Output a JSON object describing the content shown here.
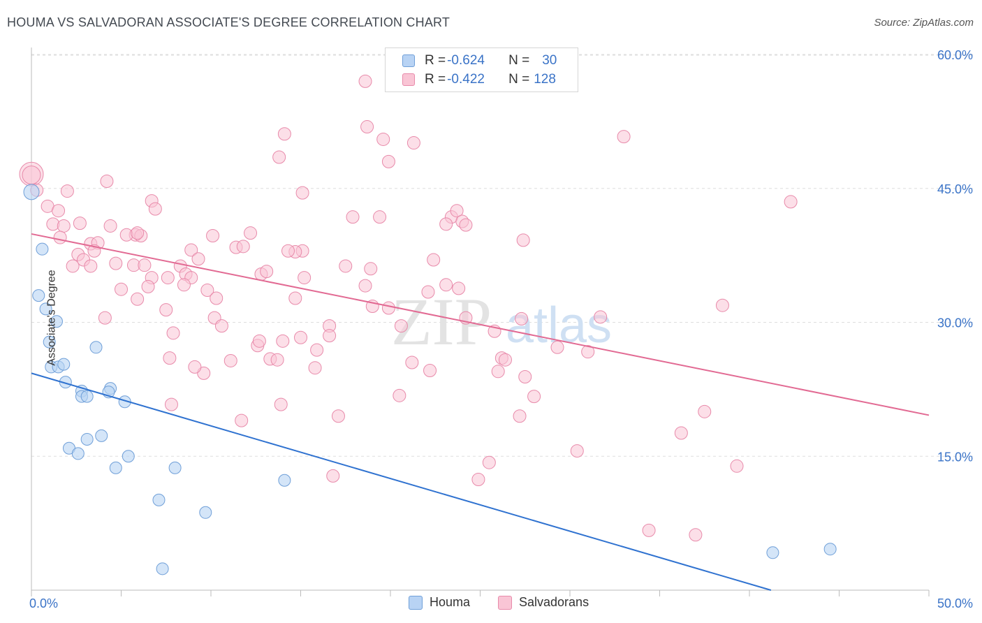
{
  "title": "HOUMA VS SALVADORAN ASSOCIATE'S DEGREE CORRELATION CHART",
  "source": "Source: ZipAtlas.com",
  "watermark": {
    "zip": "ZIP",
    "atlas": "atlas"
  },
  "legend": {
    "rows": [
      {
        "r_label": "R = ",
        "r_value": "-0.624",
        "n_label": "N = ",
        "n_value": "30"
      },
      {
        "r_label": "R = ",
        "r_value": "-0.422",
        "n_label": "N = ",
        "n_value": "128"
      }
    ]
  },
  "colors": {
    "houma_fill": "#b8d3f4",
    "houma_stroke": "#6f9fd8",
    "houma_line": "#2f72d0",
    "salv_fill": "#f9c5d5",
    "salv_stroke": "#e88aaa",
    "salv_line": "#e26a93",
    "tick_text": "#3a73c7",
    "grid": "#dddddd"
  },
  "chart_data": {
    "type": "scatter",
    "title": "HOUMA VS SALVADORAN ASSOCIATE'S DEGREE CORRELATION CHART",
    "xlabel": "",
    "ylabel": "Associate's Degree",
    "xlim": [
      0,
      50
    ],
    "ylim": [
      0,
      60
    ],
    "x_tick_labels": [
      "0.0%",
      "50.0%"
    ],
    "y_ticks": [
      15,
      30,
      45,
      60
    ],
    "y_tick_labels": [
      "15.0%",
      "30.0%",
      "45.0%",
      "60.0%"
    ],
    "grid": true,
    "legend_position": "top-center",
    "series": [
      {
        "name": "Houma",
        "R": -0.624,
        "N": 30,
        "trend": {
          "x": [
            0,
            41.2
          ],
          "y": [
            24.3,
            0
          ]
        },
        "points": [
          [
            0.0,
            44.6
          ],
          [
            0.6,
            38.2
          ],
          [
            0.4,
            33.0
          ],
          [
            0.8,
            31.5
          ],
          [
            1.4,
            30.1
          ],
          [
            1.0,
            27.8
          ],
          [
            3.6,
            27.2
          ],
          [
            1.1,
            25.0
          ],
          [
            1.5,
            25.0
          ],
          [
            1.8,
            25.3
          ],
          [
            1.9,
            23.3
          ],
          [
            2.8,
            22.3
          ],
          [
            4.4,
            22.6
          ],
          [
            2.8,
            21.7
          ],
          [
            3.1,
            21.7
          ],
          [
            4.3,
            22.2
          ],
          [
            5.2,
            21.1
          ],
          [
            3.9,
            17.3
          ],
          [
            3.1,
            16.9
          ],
          [
            2.1,
            15.9
          ],
          [
            2.6,
            15.3
          ],
          [
            5.4,
            15.0
          ],
          [
            4.7,
            13.7
          ],
          [
            8.0,
            13.7
          ],
          [
            14.1,
            12.3
          ],
          [
            7.1,
            10.1
          ],
          [
            9.7,
            8.7
          ],
          [
            7.3,
            2.4
          ],
          [
            41.3,
            4.2
          ],
          [
            44.5,
            4.6
          ]
        ]
      },
      {
        "name": "Salvadorans",
        "R": -0.422,
        "N": 128,
        "trend": {
          "x": [
            0,
            50
          ],
          "y": [
            39.9,
            19.6
          ]
        },
        "points": [
          [
            0.0,
            46.6
          ],
          [
            0.3,
            44.8
          ],
          [
            2.0,
            44.7
          ],
          [
            0.9,
            43.0
          ],
          [
            1.5,
            42.5
          ],
          [
            1.2,
            41.0
          ],
          [
            1.8,
            40.8
          ],
          [
            2.7,
            41.1
          ],
          [
            4.2,
            45.8
          ],
          [
            6.7,
            43.6
          ],
          [
            6.9,
            42.7
          ],
          [
            4.4,
            40.8
          ],
          [
            5.8,
            39.8
          ],
          [
            6.1,
            39.7
          ],
          [
            5.3,
            39.8
          ],
          [
            5.9,
            40.0
          ],
          [
            1.6,
            39.5
          ],
          [
            3.3,
            38.8
          ],
          [
            3.7,
            38.9
          ],
          [
            3.5,
            38.0
          ],
          [
            2.6,
            37.6
          ],
          [
            2.9,
            37.0
          ],
          [
            4.7,
            36.6
          ],
          [
            5.7,
            36.4
          ],
          [
            2.3,
            36.3
          ],
          [
            3.3,
            36.3
          ],
          [
            6.3,
            36.4
          ],
          [
            8.3,
            36.3
          ],
          [
            8.9,
            38.1
          ],
          [
            9.3,
            37.1
          ],
          [
            7.6,
            35.0
          ],
          [
            8.6,
            35.4
          ],
          [
            8.9,
            35.0
          ],
          [
            6.7,
            35.0
          ],
          [
            6.5,
            34.0
          ],
          [
            8.5,
            34.2
          ],
          [
            5.0,
            33.7
          ],
          [
            9.8,
            33.6
          ],
          [
            10.3,
            32.7
          ],
          [
            5.9,
            32.6
          ],
          [
            7.5,
            31.4
          ],
          [
            4.1,
            30.5
          ],
          [
            7.9,
            28.8
          ],
          [
            10.1,
            39.7
          ],
          [
            12.2,
            40.0
          ],
          [
            11.4,
            38.4
          ],
          [
            11.8,
            38.5
          ],
          [
            12.8,
            35.4
          ],
          [
            13.1,
            35.7
          ],
          [
            15.1,
            38.0
          ],
          [
            14.7,
            37.9
          ],
          [
            14.3,
            38.0
          ],
          [
            15.2,
            35.0
          ],
          [
            14.7,
            32.7
          ],
          [
            10.2,
            30.5
          ],
          [
            10.6,
            29.6
          ],
          [
            11.1,
            25.7
          ],
          [
            12.6,
            27.4
          ],
          [
            12.7,
            27.9
          ],
          [
            13.3,
            25.9
          ],
          [
            13.7,
            25.8
          ],
          [
            14.0,
            27.9
          ],
          [
            15.0,
            28.3
          ],
          [
            15.9,
            26.9
          ],
          [
            16.6,
            29.6
          ],
          [
            16.6,
            28.5
          ],
          [
            17.5,
            36.3
          ],
          [
            18.6,
            34.1
          ],
          [
            18.9,
            36.0
          ],
          [
            19.0,
            31.8
          ],
          [
            19.9,
            31.6
          ],
          [
            20.6,
            29.6
          ],
          [
            21.2,
            25.5
          ],
          [
            22.2,
            24.6
          ],
          [
            20.5,
            21.8
          ],
          [
            22.1,
            33.4
          ],
          [
            23.1,
            34.2
          ],
          [
            23.8,
            33.8
          ],
          [
            22.4,
            37.0
          ],
          [
            23.4,
            41.8
          ],
          [
            23.7,
            42.5
          ],
          [
            23.1,
            41.0
          ],
          [
            24.0,
            41.3
          ],
          [
            24.2,
            40.9
          ],
          [
            17.9,
            41.8
          ],
          [
            19.4,
            41.8
          ],
          [
            15.1,
            44.5
          ],
          [
            13.8,
            48.5
          ],
          [
            14.1,
            51.1
          ],
          [
            18.6,
            57.0
          ],
          [
            18.7,
            51.9
          ],
          [
            19.6,
            50.5
          ],
          [
            19.9,
            48.0
          ],
          [
            21.3,
            50.1
          ],
          [
            24.2,
            30.5
          ],
          [
            27.3,
            30.4
          ],
          [
            25.8,
            29.0
          ],
          [
            26.2,
            26.0
          ],
          [
            26.4,
            25.8
          ],
          [
            26.0,
            24.5
          ],
          [
            27.5,
            23.9
          ],
          [
            28.0,
            21.7
          ],
          [
            27.2,
            19.5
          ],
          [
            25.5,
            14.3
          ],
          [
            24.9,
            12.4
          ],
          [
            16.8,
            12.8
          ],
          [
            17.1,
            19.5
          ],
          [
            13.9,
            20.8
          ],
          [
            7.8,
            20.8
          ],
          [
            9.6,
            24.3
          ],
          [
            9.1,
            25.0
          ],
          [
            7.7,
            26.0
          ],
          [
            11.7,
            19.0
          ],
          [
            15.8,
            24.9
          ],
          [
            27.4,
            39.2
          ],
          [
            31.7,
            30.6
          ],
          [
            29.3,
            27.2
          ],
          [
            31.0,
            26.7
          ],
          [
            30.4,
            15.6
          ],
          [
            33.0,
            50.8
          ],
          [
            38.5,
            31.9
          ],
          [
            42.3,
            43.5
          ],
          [
            37.5,
            20.0
          ],
          [
            36.2,
            17.6
          ],
          [
            39.3,
            13.9
          ],
          [
            34.4,
            6.7
          ],
          [
            37.0,
            6.2
          ],
          [
            0.0,
            46.5
          ]
        ]
      }
    ]
  },
  "bottom_legend": [
    {
      "label": "Houma"
    },
    {
      "label": "Salvadorans"
    }
  ]
}
